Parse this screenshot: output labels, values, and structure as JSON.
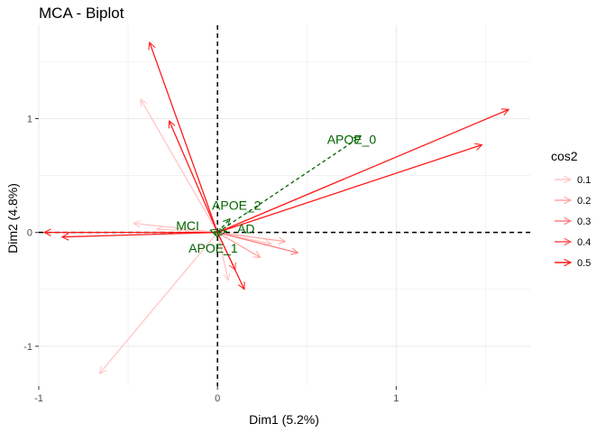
{
  "chart_data": {
    "type": "scatter",
    "subtype": "mca-biplot-arrows",
    "title": "MCA - Biplot",
    "xlabel": "Dim1 (5.2%)",
    "ylabel": "Dim2 (4.8%)",
    "xlim": [
      -1.0,
      1.75
    ],
    "ylim": [
      -1.35,
      1.82
    ],
    "xticks": [
      -1,
      0,
      1
    ],
    "yticks": [
      -1,
      0,
      1
    ],
    "grid": true,
    "reference_lines": {
      "x": 0,
      "y": 0,
      "style": "dashed"
    },
    "legend": {
      "title": "cos2",
      "placement": "right",
      "entries": [
        {
          "label": "0.1",
          "color": "#ffc6c6"
        },
        {
          "label": "0.2",
          "color": "#ffa4a4"
        },
        {
          "label": "0.3",
          "color": "#ff7e7e"
        },
        {
          "label": "0.4",
          "color": "#ff5252"
        },
        {
          "label": "0.5",
          "color": "#ff1a1a"
        }
      ]
    },
    "variables": [
      {
        "x": -0.38,
        "y": 1.67,
        "cos2": 0.5
      },
      {
        "x": -0.27,
        "y": 0.98,
        "cos2": 0.5
      },
      {
        "x": -0.43,
        "y": 1.17,
        "cos2": 0.1
      },
      {
        "x": 1.63,
        "y": 1.08,
        "cos2": 0.5
      },
      {
        "x": 1.48,
        "y": 0.77,
        "cos2": 0.5
      },
      {
        "x": -0.97,
        "y": 0.0,
        "cos2": 0.5
      },
      {
        "x": -0.87,
        "y": -0.04,
        "cos2": 0.5
      },
      {
        "x": -0.47,
        "y": 0.08,
        "cos2": 0.1
      },
      {
        "x": -0.34,
        "y": 0.03,
        "cos2": 0.1
      },
      {
        "x": -0.66,
        "y": -1.24,
        "cos2": 0.1
      },
      {
        "x": 0.15,
        "y": -0.5,
        "cos2": 0.5
      },
      {
        "x": 0.1,
        "y": -0.33,
        "cos2": 0.4
      },
      {
        "x": 0.06,
        "y": -0.42,
        "cos2": 0.1
      },
      {
        "x": 0.45,
        "y": -0.18,
        "cos2": 0.3
      },
      {
        "x": 0.24,
        "y": -0.22,
        "cos2": 0.2
      },
      {
        "x": 0.38,
        "y": -0.08,
        "cos2": 0.2
      },
      {
        "x": 0.3,
        "y": -0.1,
        "cos2": 0.1
      }
    ],
    "supplementary": [
      {
        "label": "APOE_0",
        "x": 0.8,
        "y": 0.84
      },
      {
        "label": "APOE_2",
        "x": 0.07,
        "y": 0.12
      },
      {
        "label": "MCI",
        "x": -0.04,
        "y": 0.02
      },
      {
        "label": "AD",
        "x": 0.05,
        "y": 0.01
      },
      {
        "label": "APOE_1",
        "x": 0.0,
        "y": -0.05
      }
    ],
    "supplementary_color": "#006400"
  }
}
